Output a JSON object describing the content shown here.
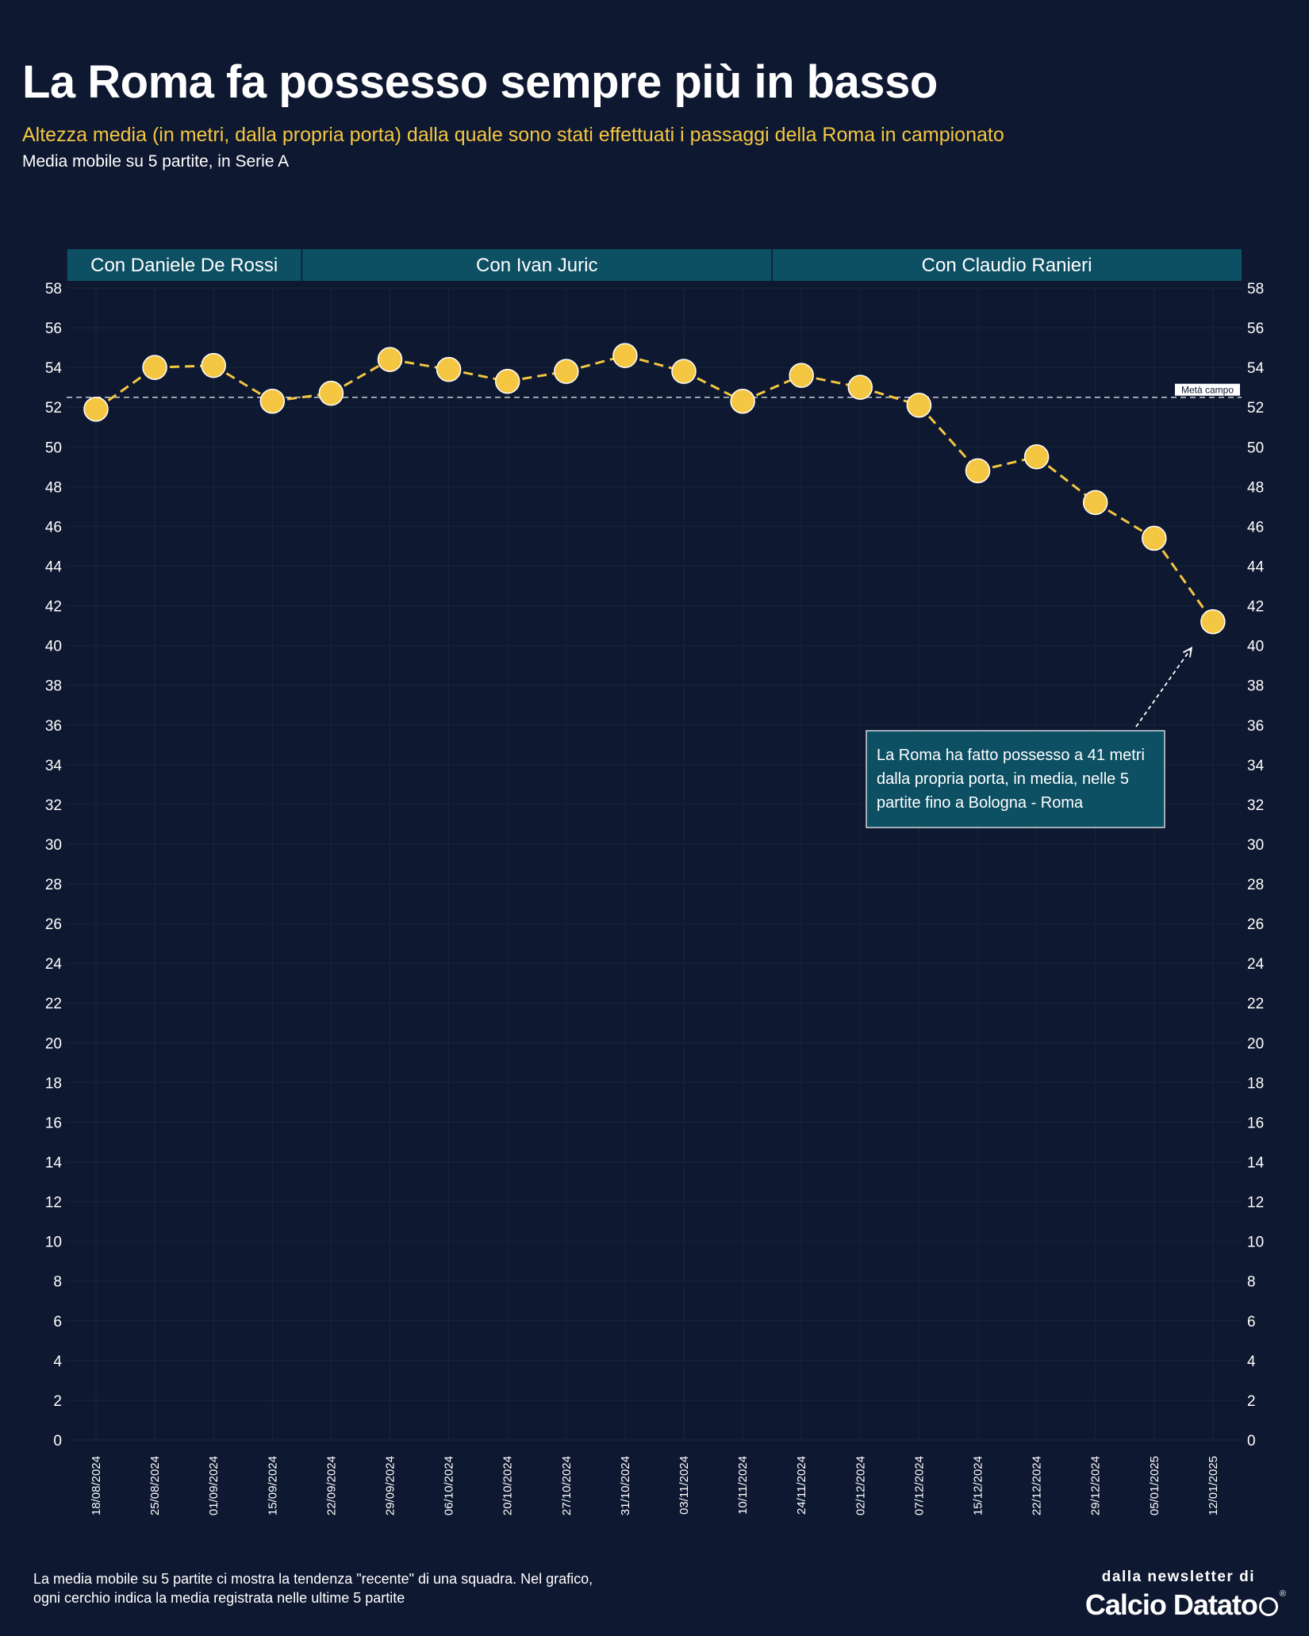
{
  "title": "La Roma fa possesso sempre più in basso",
  "subtitle": "Altezza media (in metri, dalla propria porta) dalla quale sono stati effettuati i passaggi della Roma in campionato",
  "subsubtitle": "Media mobile su 5 partite, in Serie A",
  "footer": {
    "note": "La media mobile su 5 partite ci mostra la tendenza \"recente\" di una squadra. Nel grafico, ogni cerchio indica la media registrata nelle ultime 5 partite",
    "brand_top": "dalla newsletter di",
    "brand_name": "Calcio Datato",
    "brand_reg": "®"
  },
  "colors": {
    "background": "#0e1830",
    "accent": "#f4c642",
    "band": "#0d4f63",
    "annotation_bg": "#0d4f63",
    "grid": "#15283a",
    "reference": "#c8ccd4"
  },
  "chart_data": {
    "type": "line",
    "x": [
      "18/08/2024",
      "25/08/2024",
      "01/09/2024",
      "15/09/2024",
      "22/09/2024",
      "29/09/2024",
      "06/10/2024",
      "20/10/2024",
      "27/10/2024",
      "31/10/2024",
      "03/11/2024",
      "10/11/2024",
      "24/11/2024",
      "02/12/2024",
      "07/12/2024",
      "15/12/2024",
      "22/12/2024",
      "29/12/2024",
      "05/01/2025",
      "12/01/2025"
    ],
    "series": [
      {
        "values": [
          51.9,
          54.0,
          54.1,
          52.3,
          52.7,
          54.4,
          53.9,
          53.3,
          53.8,
          54.6,
          53.8,
          52.3,
          53.6,
          53.0,
          52.1,
          48.8,
          49.5,
          47.2,
          45.4,
          41.2
        ]
      }
    ],
    "ylim": [
      0,
      58
    ],
    "yticks": [
      0,
      2,
      4,
      6,
      8,
      10,
      12,
      14,
      16,
      18,
      20,
      22,
      24,
      26,
      28,
      30,
      32,
      34,
      36,
      38,
      40,
      42,
      44,
      46,
      48,
      50,
      52,
      54,
      56,
      58
    ],
    "grid": true,
    "y_axis_both_sides": true,
    "reference_line": {
      "value": 52.5,
      "label": "Metà campo"
    },
    "periods": [
      {
        "label": "Con Daniele De Rossi",
        "from": 0,
        "to": 3
      },
      {
        "label": "Con Ivan Juric",
        "from": 4,
        "to": 11
      },
      {
        "label": "Con Claudio Ranieri",
        "from": 12,
        "to": 19
      }
    ],
    "annotation": {
      "text_lines": [
        "La Roma ha fatto possesso a 41 metri",
        "dalla propria porta, in media, nelle 5",
        "partite fino a Bologna - Roma"
      ],
      "target_index": 19
    }
  }
}
